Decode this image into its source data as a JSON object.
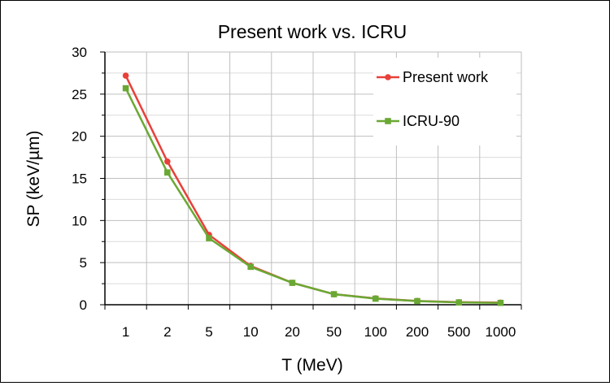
{
  "chart_data": {
    "type": "line",
    "title": "Present work vs. ICRU",
    "xlabel": "T (MeV)",
    "ylabel": "SP (keV/µm)",
    "categories": [
      "1",
      "2",
      "5",
      "10",
      "20",
      "50",
      "100",
      "200",
      "500",
      "1000"
    ],
    "ylim": [
      0,
      30
    ],
    "yticks": [
      0,
      5,
      10,
      15,
      20,
      25,
      30
    ],
    "grid": true,
    "legend_position": "top-right",
    "series": [
      {
        "name": "Present work",
        "color": "#e8403a",
        "marker": "circle",
        "values": [
          27.2,
          17.0,
          8.3,
          4.6,
          2.6,
          1.25,
          0.75,
          0.45,
          0.3,
          0.25
        ]
      },
      {
        "name": "ICRU-90",
        "color": "#6aa834",
        "marker": "square",
        "values": [
          25.7,
          15.7,
          7.9,
          4.5,
          2.6,
          1.25,
          0.72,
          0.43,
          0.28,
          0.22
        ]
      }
    ]
  }
}
